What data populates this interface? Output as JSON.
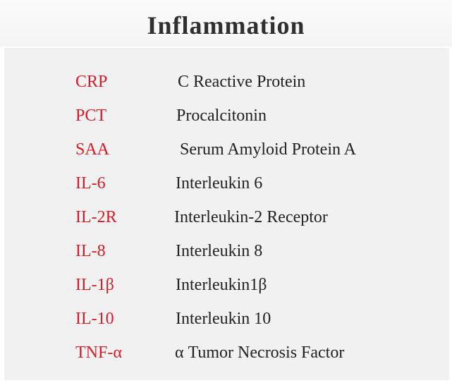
{
  "title": "Inflammation",
  "colors": {
    "abbreviation": "#d81b25",
    "definition": "#222222",
    "panel_background": "#f1f1f1",
    "title": "#303030"
  },
  "items": [
    {
      "abbr": "CRP",
      "full": "C Reactive Protein"
    },
    {
      "abbr": "PCT",
      "full": "Procalcitonin"
    },
    {
      "abbr": "SAA",
      "full": "Serum Amyloid Protein A"
    },
    {
      "abbr": "IL-6",
      "full": "Interleukin 6"
    },
    {
      "abbr": "IL-2R",
      "full": "Interleukin-2 Receptor"
    },
    {
      "abbr": "IL-8",
      "full": "Interleukin 8"
    },
    {
      "abbr": "IL-1β",
      "full": "Interleukin1β"
    },
    {
      "abbr": "IL-10",
      "full": "Interleukin 10"
    },
    {
      "abbr": "TNF-α",
      "full": "α Tumor Necrosis Factor"
    }
  ]
}
